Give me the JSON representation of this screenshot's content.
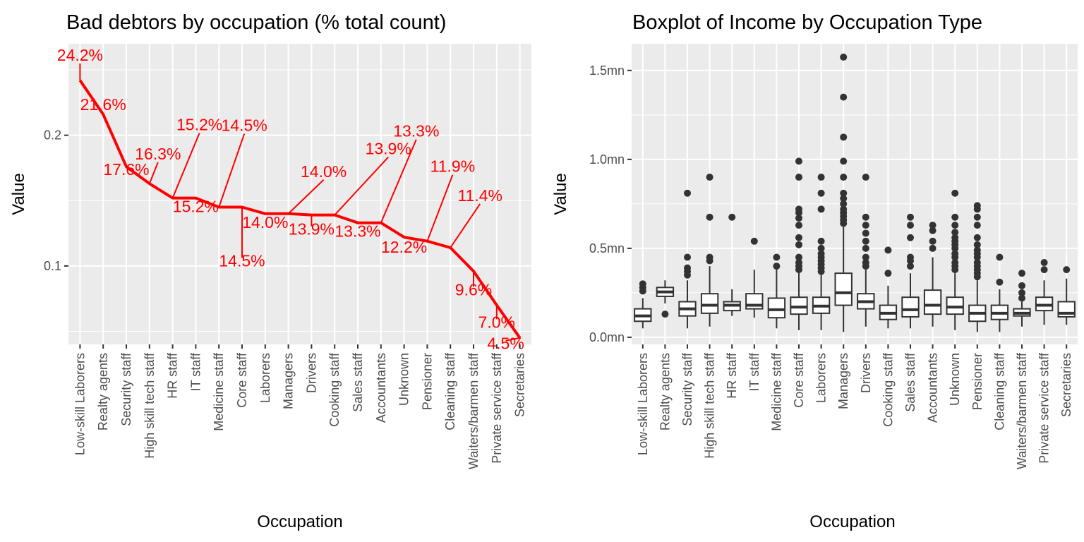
{
  "chart_data": [
    {
      "type": "line",
      "title": "Bad debtors by occupation (% total count)",
      "xlabel": "Occupation",
      "ylabel": "Value",
      "ylim": [
        0.04,
        0.27
      ],
      "y_ticks": [
        0.1,
        0.2
      ],
      "y_tick_labels": [
        "0.1",
        "0.2"
      ],
      "grid": true,
      "line_color": "#ff0000",
      "categories": [
        "Low-skill Laborers",
        "Realty agents",
        "Security staff",
        "High skill tech staff",
        "HR staff",
        "IT staff",
        "Medicine staff",
        "Core staff",
        "Laborers",
        "Managers",
        "Drivers",
        "Cooking staff",
        "Sales staff",
        "Accountants",
        "Unknown",
        "Pensioner",
        "Cleaning staff",
        "Waiters/barmen staff",
        "Private service staff",
        "Secretaries"
      ],
      "values": [
        0.242,
        0.216,
        0.176,
        0.163,
        0.152,
        0.152,
        0.145,
        0.145,
        0.14,
        0.14,
        0.139,
        0.139,
        0.133,
        0.133,
        0.122,
        0.119,
        0.114,
        0.096,
        0.07,
        0.045
      ],
      "data_labels": [
        "24.2%",
        "21.6%",
        "17.6%",
        "16.3%",
        "15.2%",
        "15.2%",
        "14.5%",
        "14.5%",
        "14.0%",
        "14.0%",
        "13.9%",
        "13.9%",
        "13.3%",
        "13.3%",
        "12.2%",
        "11.9%",
        "11.4%",
        "9.6%",
        "7.0%",
        "4.5%"
      ]
    },
    {
      "type": "boxplot",
      "title": "Boxplot of Income by Occupation Type",
      "xlabel": "Occupation",
      "ylabel": "Value",
      "ylim": [
        -0.04,
        1.65
      ],
      "y_ticks": [
        0.0,
        0.5,
        1.0,
        1.5
      ],
      "y_tick_labels": [
        "0.0mn",
        "0.5mn",
        "1.0mn",
        "1.5mn"
      ],
      "y_unit": "mn",
      "grid": true,
      "categories": [
        "Low-skill Laborers",
        "Realty agents",
        "Security staff",
        "High skill tech staff",
        "HR staff",
        "IT staff",
        "Medicine staff",
        "Core staff",
        "Laborers",
        "Managers",
        "Drivers",
        "Cooking staff",
        "Sales staff",
        "Accountants",
        "Unknown",
        "Pensioner",
        "Cleaning staff",
        "Waiters/barmen staff",
        "Private service staff",
        "Secretaries"
      ],
      "boxes": [
        {
          "whisker_low": 0.05,
          "q1": 0.09,
          "median": 0.12,
          "q3": 0.16,
          "whisker_high": 0.22,
          "outliers": [
            0.26,
            0.28,
            0.3
          ]
        },
        {
          "whisker_low": 0.19,
          "q1": 0.23,
          "median": 0.255,
          "q3": 0.28,
          "whisker_high": 0.32,
          "outliers": [
            0.13
          ]
        },
        {
          "whisker_low": 0.05,
          "q1": 0.12,
          "median": 0.16,
          "q3": 0.2,
          "whisker_high": 0.32,
          "outliers": [
            0.35,
            0.37,
            0.39,
            0.45,
            0.81
          ]
        },
        {
          "whisker_low": 0.06,
          "q1": 0.135,
          "median": 0.18,
          "q3": 0.245,
          "whisker_high": 0.4,
          "outliers": [
            0.43,
            0.45,
            0.675,
            0.9
          ]
        },
        {
          "whisker_low": 0.12,
          "q1": 0.15,
          "median": 0.18,
          "q3": 0.2,
          "whisker_high": 0.27,
          "outliers": [
            0.675
          ]
        },
        {
          "whisker_low": 0.11,
          "q1": 0.16,
          "median": 0.18,
          "q3": 0.245,
          "whisker_high": 0.38,
          "outliers": [
            0.54
          ]
        },
        {
          "whisker_low": 0.05,
          "q1": 0.11,
          "median": 0.155,
          "q3": 0.22,
          "whisker_high": 0.38,
          "outliers": [
            0.4,
            0.45
          ]
        },
        {
          "whisker_low": 0.04,
          "q1": 0.13,
          "median": 0.17,
          "q3": 0.225,
          "whisker_high": 0.37,
          "outliers": [
            0.38,
            0.4,
            0.42,
            0.45,
            0.52,
            0.56,
            0.63,
            0.67,
            0.7,
            0.72,
            0.9,
            0.99
          ]
        },
        {
          "whisker_low": 0.04,
          "q1": 0.135,
          "median": 0.175,
          "q3": 0.225,
          "whisker_high": 0.36,
          "outliers": [
            0.37,
            0.39,
            0.41,
            0.43,
            0.45,
            0.47,
            0.5,
            0.54,
            0.72,
            0.81,
            0.9
          ]
        },
        {
          "whisker_low": 0.03,
          "q1": 0.18,
          "median": 0.25,
          "q3": 0.36,
          "whisker_high": 0.62,
          "outliers": [
            0.64,
            0.66,
            0.68,
            0.7,
            0.72,
            0.75,
            0.78,
            0.81,
            0.9,
            0.99,
            1.125,
            1.35,
            1.575
          ]
        },
        {
          "whisker_low": 0.06,
          "q1": 0.16,
          "median": 0.2,
          "q3": 0.245,
          "whisker_high": 0.38,
          "outliers": [
            0.4,
            0.42,
            0.45,
            0.5,
            0.54,
            0.585,
            0.63,
            0.675,
            0.9
          ]
        },
        {
          "whisker_low": 0.05,
          "q1": 0.1,
          "median": 0.135,
          "q3": 0.18,
          "whisker_high": 0.29,
          "outliers": [
            0.36,
            0.49
          ]
        },
        {
          "whisker_low": 0.05,
          "q1": 0.115,
          "median": 0.155,
          "q3": 0.225,
          "whisker_high": 0.36,
          "outliers": [
            0.4,
            0.43,
            0.45,
            0.56,
            0.63,
            0.675
          ]
        },
        {
          "whisker_low": 0.06,
          "q1": 0.13,
          "median": 0.18,
          "q3": 0.265,
          "whisker_high": 0.45,
          "outliers": [
            0.5,
            0.54,
            0.6,
            0.63
          ]
        },
        {
          "whisker_low": 0.04,
          "q1": 0.13,
          "median": 0.17,
          "q3": 0.225,
          "whisker_high": 0.36,
          "outliers": [
            0.38,
            0.4,
            0.42,
            0.45,
            0.47,
            0.5,
            0.52,
            0.54,
            0.56,
            0.59,
            0.63,
            0.675,
            0.81
          ]
        },
        {
          "whisker_low": 0.03,
          "q1": 0.09,
          "median": 0.135,
          "q3": 0.18,
          "whisker_high": 0.32,
          "outliers": [
            0.34,
            0.36,
            0.38,
            0.4,
            0.42,
            0.45,
            0.47,
            0.49,
            0.52,
            0.56,
            0.63,
            0.675,
            0.72,
            0.74
          ]
        },
        {
          "whisker_low": 0.03,
          "q1": 0.1,
          "median": 0.135,
          "q3": 0.18,
          "whisker_high": 0.27,
          "outliers": [
            0.31,
            0.45
          ]
        },
        {
          "whisker_low": 0.06,
          "q1": 0.12,
          "median": 0.135,
          "q3": 0.16,
          "whisker_high": 0.2,
          "outliers": [
            0.22,
            0.25,
            0.29,
            0.36
          ]
        },
        {
          "whisker_low": 0.07,
          "q1": 0.15,
          "median": 0.18,
          "q3": 0.225,
          "whisker_high": 0.32,
          "outliers": [
            0.38,
            0.42
          ]
        },
        {
          "whisker_low": 0.07,
          "q1": 0.115,
          "median": 0.135,
          "q3": 0.2,
          "whisker_high": 0.33,
          "outliers": [
            0.38
          ]
        }
      ]
    }
  ]
}
